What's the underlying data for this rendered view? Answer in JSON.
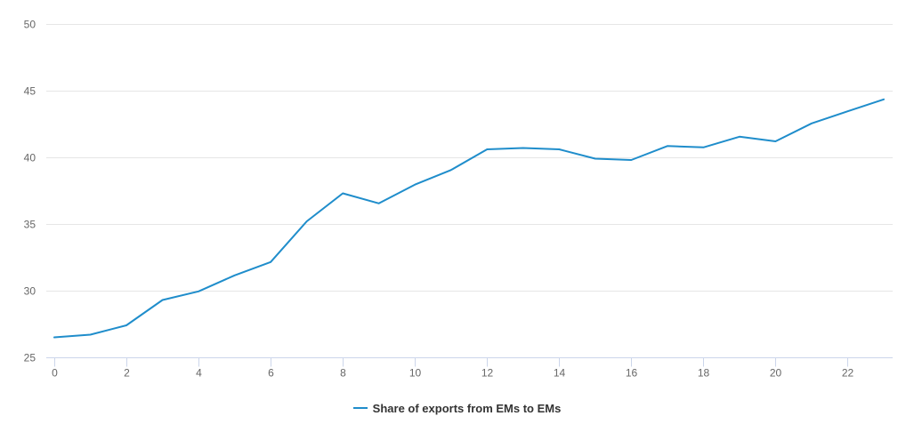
{
  "chart_data": {
    "type": "line",
    "title": "",
    "xlabel": "",
    "ylabel": "",
    "x": [
      0,
      1,
      2,
      3,
      4,
      5,
      6,
      7,
      8,
      9,
      10,
      11,
      12,
      13,
      14,
      15,
      16,
      17,
      18,
      19,
      20,
      21,
      22,
      23
    ],
    "xlim": [
      0,
      23
    ],
    "ylim": [
      25,
      50
    ],
    "x_ticks": [
      "0",
      "2",
      "4",
      "6",
      "8",
      "10",
      "12",
      "14",
      "16",
      "18",
      "20",
      "22"
    ],
    "y_ticks": [
      "25",
      "30",
      "35",
      "40",
      "45",
      "50"
    ],
    "grid": "horizontal",
    "legend_position": "bottom-center",
    "series": [
      {
        "name": "Share of exports from EMs to EMs",
        "color": "#1f8dcb",
        "values": [
          26.5,
          26.7,
          27.4,
          29.3,
          29.95,
          31.15,
          32.15,
          35.2,
          37.3,
          36.55,
          37.95,
          39.05,
          40.6,
          40.7,
          40.6,
          39.9,
          39.8,
          40.85,
          40.75,
          41.55,
          41.2,
          42.55,
          43.45,
          44.35
        ]
      }
    ]
  }
}
